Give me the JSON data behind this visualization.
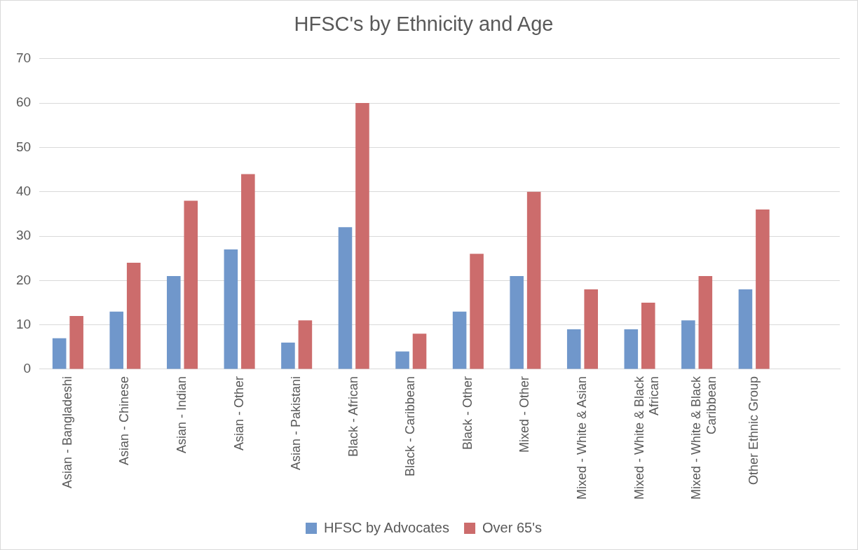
{
  "chart_data": {
    "type": "bar",
    "title": "HFSC's by Ethnicity and Age",
    "categories": [
      "Asian - Bangladeshi",
      "Asian - Chinese",
      "Asian - Indian",
      "Asian - Other",
      "Asian - Pakistani",
      "Black - African",
      "Black - Caribbean",
      "Black - Other",
      "Mixed - Other",
      "Mixed - White & Asian",
      "Mixed - White & Black African",
      "Mixed - White & Black Caribbean",
      "Other Ethnic Group",
      null
    ],
    "series": [
      {
        "name": "HFSC by Advocates",
        "color": "#7097cb",
        "values": [
          7,
          13,
          21,
          27,
          6,
          32,
          4,
          13,
          21,
          9,
          9,
          11,
          18,
          null
        ]
      },
      {
        "name": "Over 65's",
        "color": "#cc6c6c",
        "values": [
          12,
          24,
          38,
          44,
          11,
          60,
          8,
          26,
          40,
          18,
          15,
          21,
          36,
          null
        ]
      }
    ],
    "ylim": [
      0,
      70
    ],
    "yticks": [
      0,
      10,
      20,
      30,
      40,
      50,
      60,
      70
    ],
    "grid": "y",
    "legend": "bottom"
  }
}
